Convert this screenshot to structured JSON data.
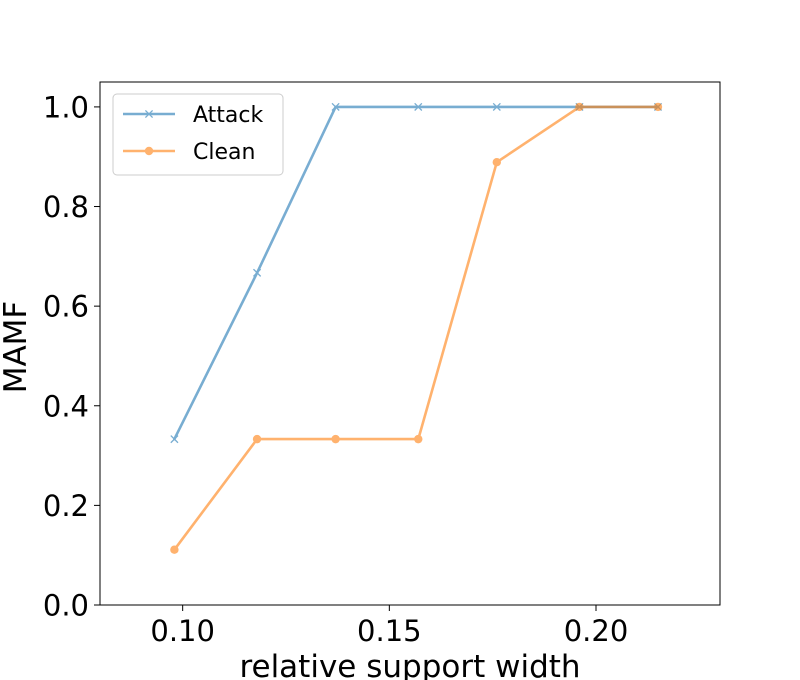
{
  "chart_data": {
    "type": "line",
    "title": "",
    "xlabel": "relative support width",
    "ylabel": "MAMF",
    "xlim": [
      0.08,
      0.23
    ],
    "ylim": [
      0.0,
      1.05
    ],
    "xticks": [
      0.1,
      0.15,
      0.2
    ],
    "xtick_labels": [
      "0.10",
      "0.15",
      "0.20"
    ],
    "yticks": [
      0.0,
      0.2,
      0.4,
      0.6,
      0.8,
      1.0
    ],
    "ytick_labels": [
      "0.0",
      "0.2",
      "0.4",
      "0.6",
      "0.8",
      "1.0"
    ],
    "grid": false,
    "legend_position": "top-left",
    "series": [
      {
        "name": "Attack",
        "color": "#1f77b4",
        "marker": "x",
        "x": [
          0.098,
          0.118,
          0.137,
          0.157,
          0.176,
          0.196,
          0.215
        ],
        "y": [
          0.333,
          0.667,
          1.0,
          1.0,
          1.0,
          1.0,
          1.0
        ]
      },
      {
        "name": "Clean",
        "color": "#ff7f0e",
        "marker": "o",
        "x": [
          0.098,
          0.118,
          0.137,
          0.157,
          0.176,
          0.196,
          0.215
        ],
        "y": [
          0.111,
          0.333,
          0.333,
          0.333,
          0.889,
          1.0,
          1.0
        ]
      }
    ]
  }
}
